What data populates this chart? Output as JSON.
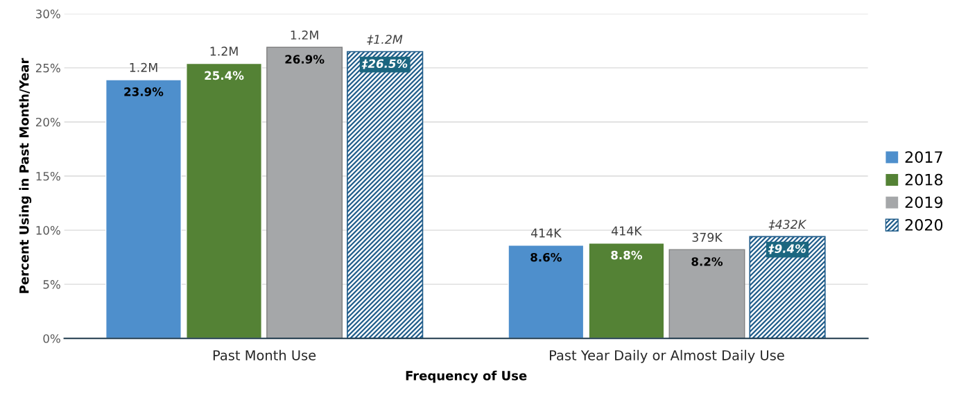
{
  "chart_data": {
    "type": "bar",
    "xlabel": "Frequency of Use",
    "ylabel": "Percent Using in Past Month/Year",
    "categories": [
      "Past Month Use",
      "Past Year Daily or Almost Daily Use"
    ],
    "series": [
      {
        "name": "2017",
        "color": "#4e8fcc",
        "values": [
          23.9,
          8.6
        ],
        "value_labels": [
          "23.9%",
          "8.6%"
        ]
      },
      {
        "name": "2018",
        "color": "#548235",
        "values": [
          25.4,
          8.8
        ],
        "value_labels": [
          "25.4%",
          "8.8%"
        ]
      },
      {
        "name": "2019",
        "color": "#a5a7a9",
        "values": [
          26.9,
          8.2
        ],
        "value_labels": [
          "26.9%",
          "8.2%"
        ]
      },
      {
        "name": "2020",
        "color": "#1f5c8a",
        "values": [
          26.5,
          9.4
        ],
        "value_labels": [
          "‡26.5%",
          "‡9.4%"
        ]
      }
    ],
    "annotations": [
      "1.2M",
      "1.2M",
      "1.2M",
      "‡1.2M",
      "414K",
      "414K",
      "379K",
      "‡432K"
    ],
    "ylim": [
      0,
      30
    ],
    "yticks": [
      {
        "value": 0,
        "label": "0%"
      },
      {
        "value": 5,
        "label": "5%"
      },
      {
        "value": 10,
        "label": "10%"
      },
      {
        "value": 15,
        "label": "15%"
      },
      {
        "value": 20,
        "label": "20%"
      },
      {
        "value": 25,
        "label": "25%"
      },
      {
        "value": 30,
        "label": "30%"
      }
    ],
    "grid": "y",
    "legend": "right"
  }
}
